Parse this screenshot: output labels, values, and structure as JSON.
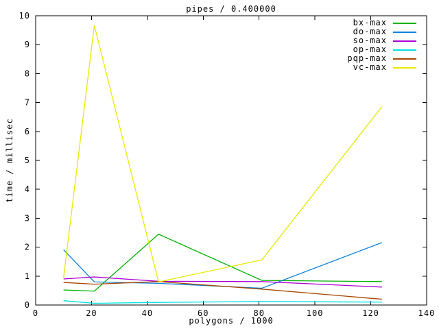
{
  "chart_data": {
    "type": "line",
    "title": "pipes / 0.400000",
    "xlabel": "polygons / 1000",
    "ylabel": "time / millisec",
    "xlim": [
      0,
      140
    ],
    "ylim": [
      0,
      10
    ],
    "x_ticks": [
      0,
      20,
      40,
      60,
      80,
      100,
      120,
      140
    ],
    "y_ticks": [
      0,
      1,
      2,
      3,
      4,
      5,
      6,
      7,
      8,
      9,
      10
    ],
    "grid": false,
    "legend_position": "top-right",
    "border_color": "#000000",
    "x": [
      10,
      21,
      44,
      81,
      124
    ],
    "series": [
      {
        "name": "bx-max",
        "color": "#00b200",
        "values": [
          0.52,
          0.48,
          2.45,
          0.85,
          0.81
        ]
      },
      {
        "name": "do-max",
        "color": "#0d82dd",
        "values": [
          1.91,
          0.8,
          0.75,
          0.58,
          2.16
        ]
      },
      {
        "name": "so-max",
        "color": "#aa00d4",
        "values": [
          0.9,
          0.97,
          0.82,
          0.81,
          0.62
        ]
      },
      {
        "name": "op-max",
        "color": "#00dfdf",
        "values": [
          0.15,
          0.06,
          0.09,
          0.12,
          0.1
        ]
      },
      {
        "name": "pqp-max",
        "color": "#a84400",
        "values": [
          0.78,
          0.72,
          0.81,
          0.55,
          0.2
        ]
      },
      {
        "name": "vc-max",
        "color": "#e9e900",
        "values": [
          0.95,
          9.67,
          0.8,
          1.56,
          6.86
        ]
      }
    ]
  }
}
